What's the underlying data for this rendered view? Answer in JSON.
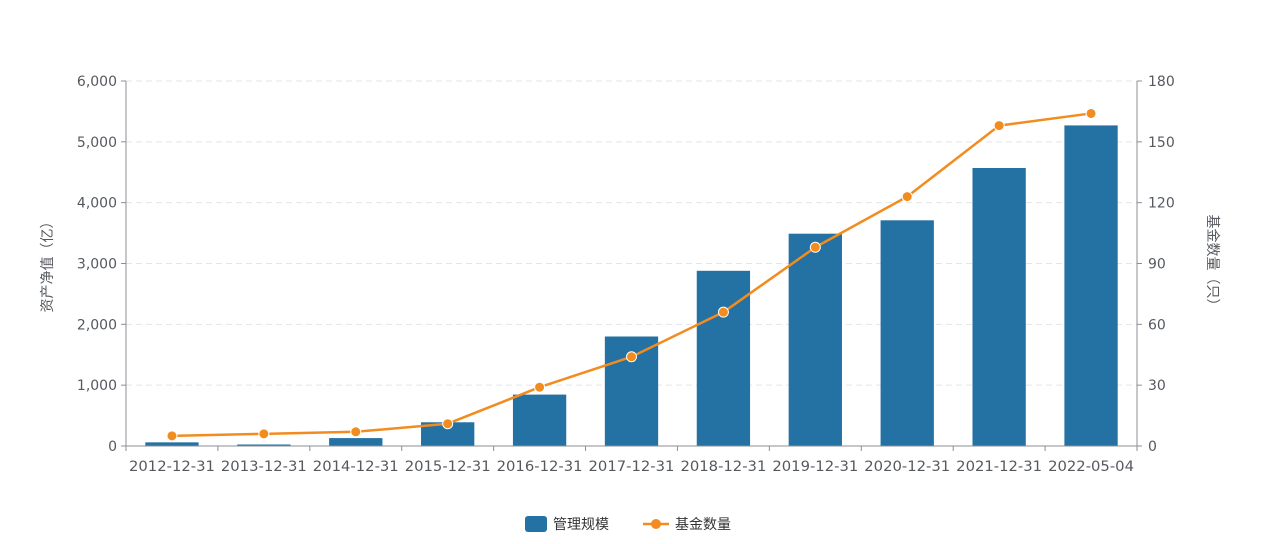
{
  "chart_data": {
    "type": "bar+line",
    "categories": [
      "2012-12-31",
      "2013-12-31",
      "2014-12-31",
      "2015-12-31",
      "2016-12-31",
      "2017-12-31",
      "2018-12-31",
      "2019-12-31",
      "2020-12-31",
      "2021-12-31",
      "2022-05-04"
    ],
    "series": [
      {
        "name": "管理规模",
        "type": "bar",
        "axis": "left",
        "color": "#2471a3",
        "values": [
          60,
          25,
          130,
          390,
          845,
          1800,
          2880,
          3490,
          3710,
          4570,
          5270
        ]
      },
      {
        "name": "基金数量",
        "type": "line",
        "axis": "right",
        "color": "#f28c1f",
        "values": [
          5,
          6,
          7,
          11,
          29,
          44,
          66,
          98,
          123,
          158,
          164
        ]
      }
    ],
    "y_left": {
      "label": "资产净值（亿）",
      "ylim": [
        0,
        6000
      ],
      "ticks": [
        0,
        1000,
        2000,
        3000,
        4000,
        5000,
        6000
      ],
      "tick_labels": [
        "0",
        "1,000",
        "2,000",
        "3,000",
        "4,000",
        "5,000",
        "6,000"
      ]
    },
    "y_right": {
      "label": "基金数量（只）",
      "ylim": [
        0,
        180
      ],
      "ticks": [
        0,
        30,
        60,
        90,
        120,
        150,
        180
      ],
      "tick_labels": [
        "0",
        "30",
        "60",
        "90",
        "120",
        "150",
        "180"
      ]
    },
    "grid": true,
    "legend_position": "bottom-center"
  }
}
